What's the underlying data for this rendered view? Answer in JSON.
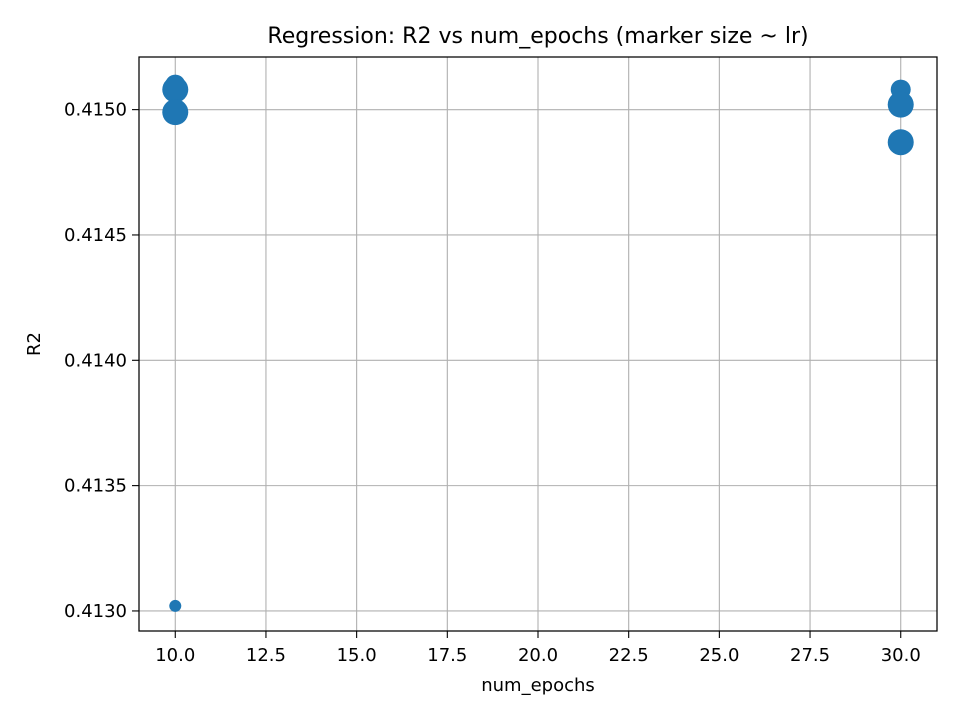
{
  "chart_data": {
    "type": "scatter",
    "title": "Regression: R2 vs num_epochs (marker size ~ lr)",
    "xlabel": "num_epochs",
    "ylabel": "R2",
    "xlim": [
      9.0,
      31.0
    ],
    "ylim": [
      0.41292,
      0.41521
    ],
    "grid": true,
    "x_ticks": [
      10.0,
      12.5,
      15.0,
      17.5,
      20.0,
      22.5,
      25.0,
      27.5,
      30.0
    ],
    "x_tick_labels": [
      "10.0",
      "12.5",
      "15.0",
      "17.5",
      "20.0",
      "22.5",
      "25.0",
      "27.5",
      "30.0"
    ],
    "y_ticks": [
      0.413,
      0.4135,
      0.414,
      0.4145,
      0.415
    ],
    "y_tick_labels": [
      "0.4130",
      "0.4135",
      "0.4140",
      "0.4145",
      "0.4150"
    ],
    "marker_color": "#1f77b4",
    "series": [
      {
        "points": [
          {
            "x": 10,
            "y": 0.4151,
            "size": 2
          },
          {
            "x": 10,
            "y": 0.41508,
            "size": 3
          },
          {
            "x": 10,
            "y": 0.41499,
            "size": 3
          },
          {
            "x": 10,
            "y": 0.41302,
            "size": 1
          },
          {
            "x": 30,
            "y": 0.41508,
            "size": 2
          },
          {
            "x": 30,
            "y": 0.41502,
            "size": 3
          },
          {
            "x": 30,
            "y": 0.41487,
            "size": 3
          }
        ]
      }
    ]
  }
}
